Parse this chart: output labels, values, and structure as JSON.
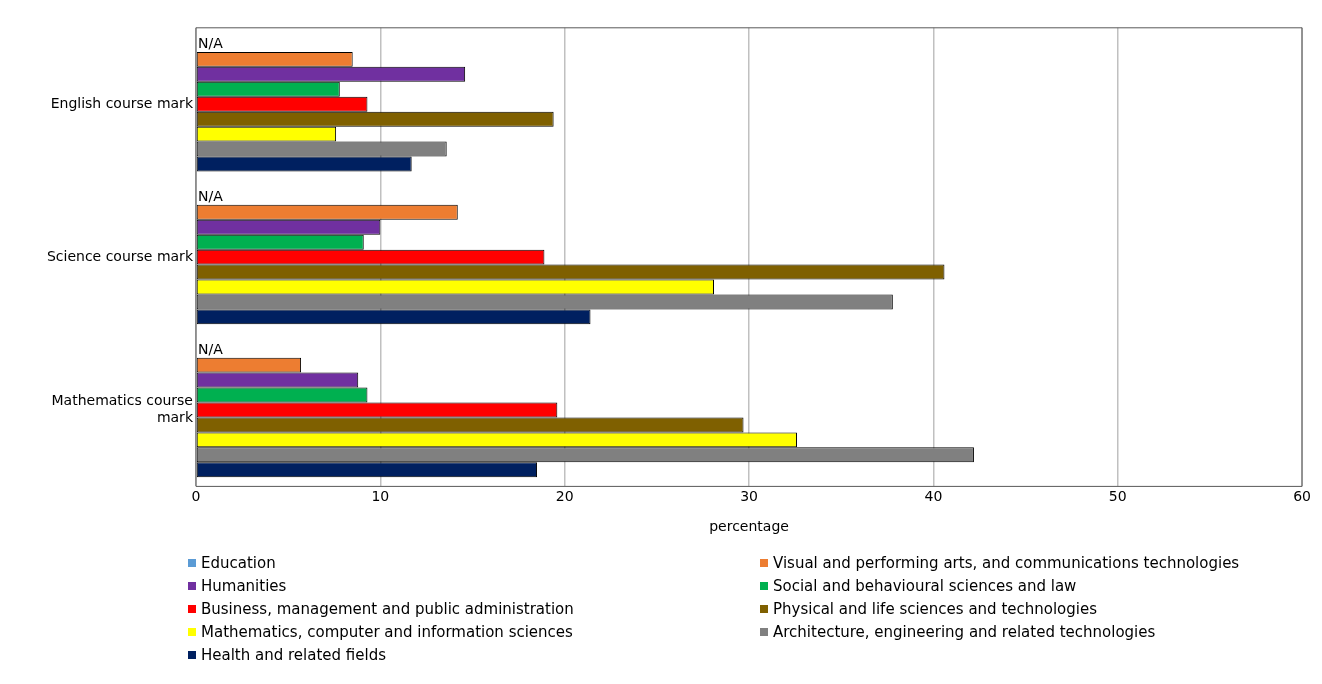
{
  "chart_data": {
    "type": "bar",
    "orientation": "horizontal",
    "xlabel": "percentage",
    "categories": [
      "English course mark",
      "Science course mark",
      "Mathematics course mark"
    ],
    "xlim": [
      0,
      60
    ],
    "xticks": [
      0,
      10,
      20,
      30,
      40,
      50,
      60
    ],
    "grid": "x",
    "legend": "bottom",
    "series": [
      {
        "name": "Education",
        "color": "#5b9bd5",
        "values": [
          null,
          null,
          null
        ],
        "value_labels": [
          "N/A",
          "N/A",
          "N/A"
        ]
      },
      {
        "name": "Visual and performing arts, and communications technologies",
        "color": "#ed7d31",
        "values": [
          8.5,
          14.2,
          5.7
        ]
      },
      {
        "name": "Humanities",
        "color": "#7030a0",
        "values": [
          14.6,
          10.0,
          8.8
        ]
      },
      {
        "name": "Social and behavioural sciences and law",
        "color": "#00b050",
        "values": [
          7.8,
          9.1,
          9.3
        ]
      },
      {
        "name": "Business, management and public administration",
        "color": "#ff0000",
        "values": [
          9.3,
          18.9,
          19.6
        ]
      },
      {
        "name": "Physical and life sciences and technologies",
        "color": "#7f6000",
        "values": [
          19.4,
          40.6,
          29.7
        ]
      },
      {
        "name": "Mathematics, computer and information sciences",
        "color": "#ffff00",
        "values": [
          7.6,
          28.1,
          32.6
        ]
      },
      {
        "name": "Architecture, engineering and related technologies",
        "color": "#808080",
        "values": [
          13.6,
          37.8,
          42.2
        ]
      },
      {
        "name": "Health and related fields",
        "color": "#002060",
        "values": [
          11.7,
          21.4,
          18.5
        ]
      }
    ]
  }
}
